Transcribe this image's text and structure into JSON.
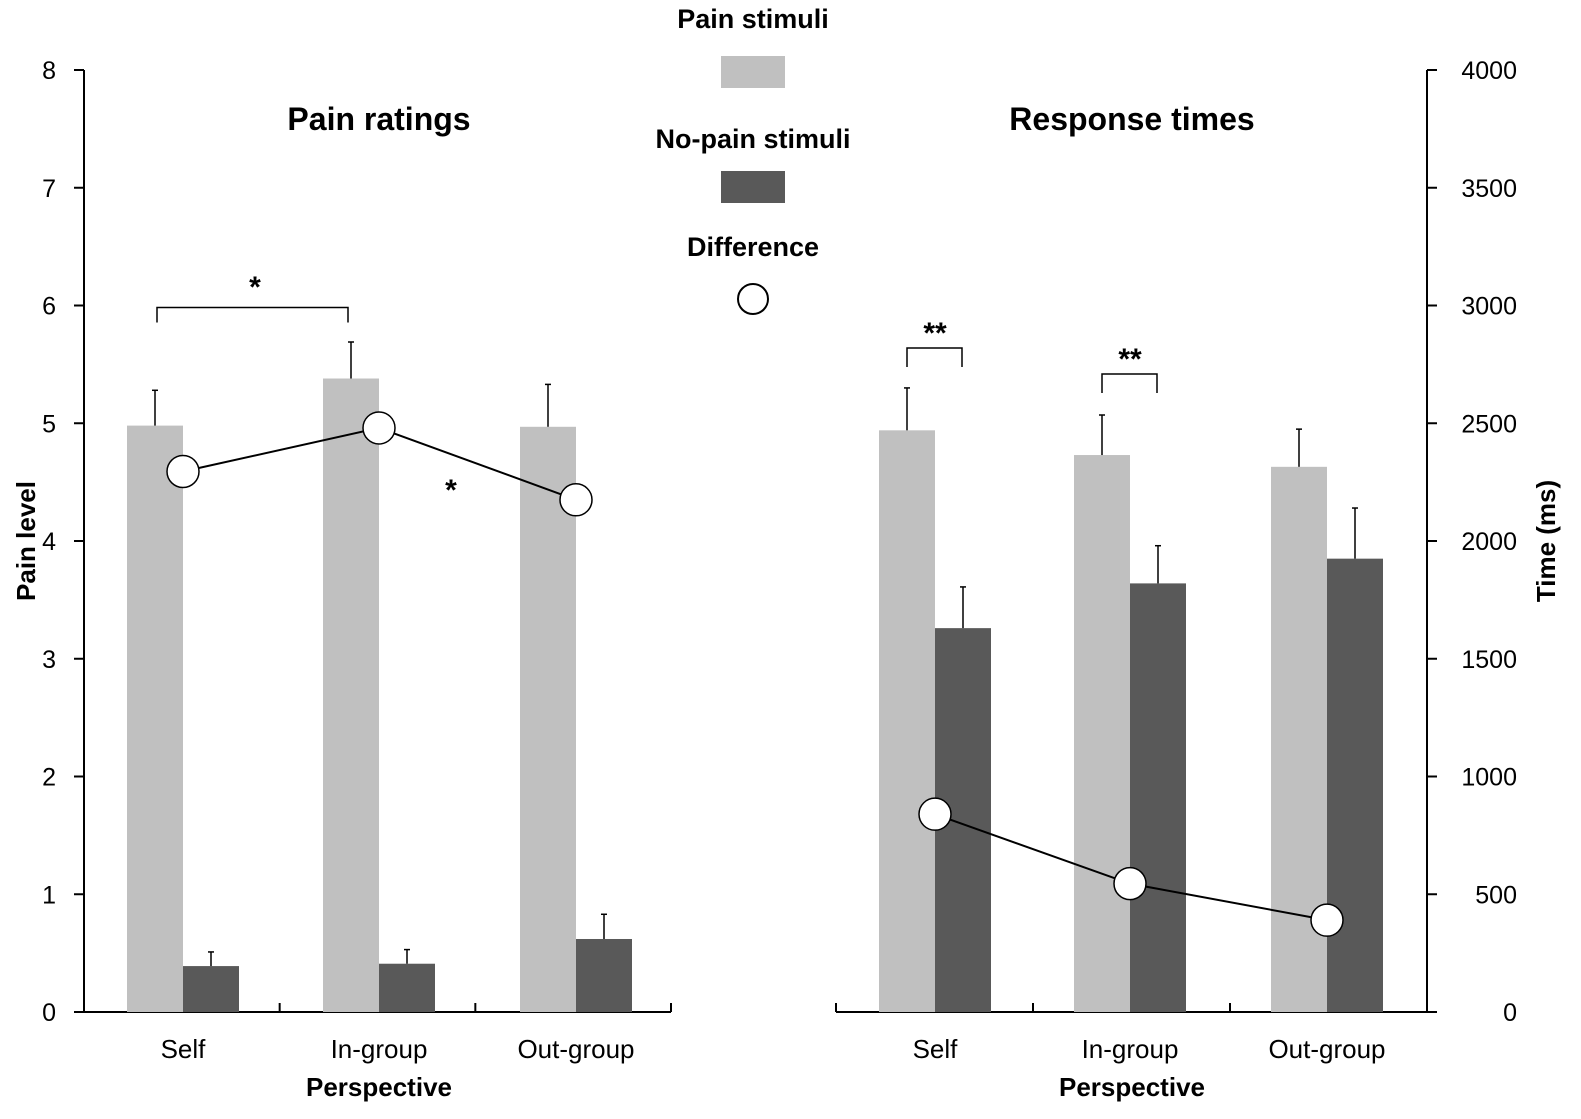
{
  "chart_data": [
    {
      "type": "bar",
      "title": "Pain ratings",
      "xlabel": "Perspective",
      "ylabel": "Pain level",
      "ylim": [
        0,
        8
      ],
      "yticks": [
        0,
        1,
        2,
        3,
        4,
        5,
        6,
        7,
        8
      ],
      "categories": [
        "Self",
        "In-group",
        "Out-group"
      ],
      "series": [
        {
          "name": "Pain stimuli",
          "color": "#c0c0c0",
          "values": [
            4.98,
            5.38,
            4.97
          ],
          "errors": [
            0.3,
            0.31,
            0.36
          ]
        },
        {
          "name": "No-pain stimuli",
          "color": "#595959",
          "values": [
            0.39,
            0.41,
            0.62
          ],
          "errors": [
            0.12,
            0.12,
            0.21
          ]
        },
        {
          "name": "Difference",
          "type": "line",
          "marker": "open-circle",
          "values": [
            4.59,
            4.96,
            4.35
          ]
        }
      ],
      "annotations": [
        {
          "text": "*",
          "type": "bracket",
          "from": "Self",
          "to": "In-group"
        },
        {
          "text": "*",
          "type": "label",
          "near": "In-group to Out-group difference line"
        }
      ]
    },
    {
      "type": "bar",
      "title": "Response times",
      "xlabel": "Perspective",
      "ylabel": "Time (ms)",
      "ylim": [
        0,
        4000
      ],
      "yticks": [
        0,
        500,
        1000,
        1500,
        2000,
        2500,
        3000,
        3500,
        4000
      ],
      "categories": [
        "Self",
        "In-group",
        "Out-group"
      ],
      "series": [
        {
          "name": "Pain stimuli",
          "color": "#c0c0c0",
          "values": [
            2470,
            2365,
            2315
          ],
          "errors": [
            180,
            170,
            160
          ]
        },
        {
          "name": "No-pain stimuli",
          "color": "#595959",
          "values": [
            1630,
            1820,
            1925
          ],
          "errors": [
            175,
            160,
            215
          ]
        },
        {
          "name": "Difference",
          "type": "line",
          "marker": "open-circle",
          "values": [
            840,
            545,
            390
          ]
        }
      ],
      "annotations": [
        {
          "text": "**",
          "type": "bracket",
          "within": "Self"
        },
        {
          "text": "**",
          "type": "bracket",
          "within": "In-group"
        }
      ]
    }
  ],
  "legend": {
    "items": [
      {
        "label": "Pain stimuli",
        "color": "#c0c0c0",
        "kind": "bar"
      },
      {
        "label": "No-pain stimuli",
        "color": "#595959",
        "kind": "bar"
      },
      {
        "label": "Difference",
        "kind": "open-circle"
      }
    ]
  }
}
